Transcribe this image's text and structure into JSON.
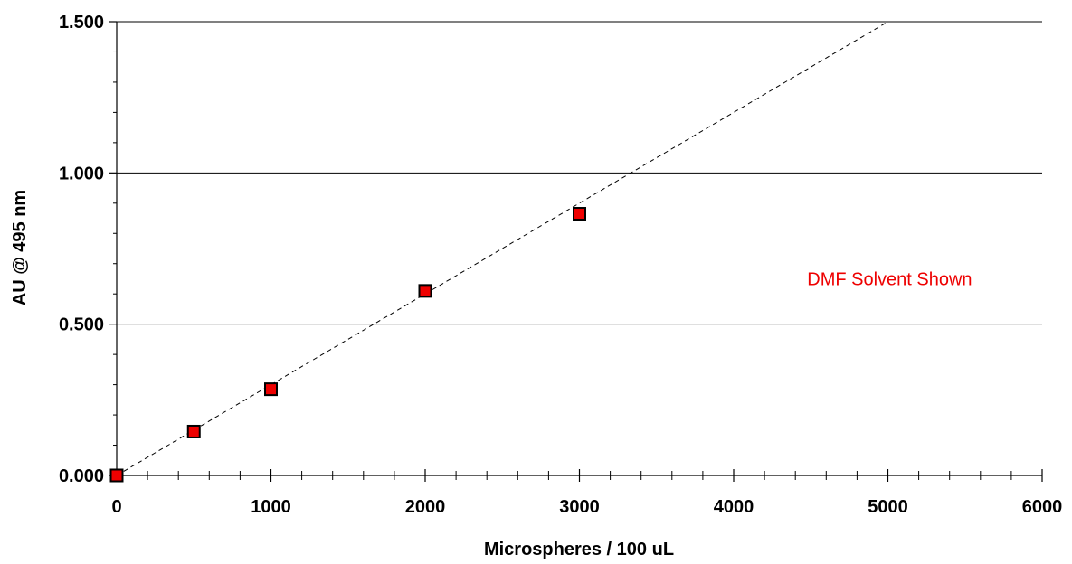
{
  "chart_data": {
    "type": "scatter",
    "xlabel": "Microspheres / 100 uL",
    "ylabel": "AU @ 495 nm",
    "xlim": [
      0,
      6000
    ],
    "ylim": [
      0,
      1.5
    ],
    "x_ticks": [
      0,
      1000,
      2000,
      3000,
      4000,
      5000,
      6000
    ],
    "x_tick_labels": [
      "0",
      "1000",
      "2000",
      "3000",
      "4000",
      "5000",
      "6000"
    ],
    "x_minor_step": 200,
    "y_ticks": [
      0,
      0.5,
      1.0,
      1.5
    ],
    "y_tick_labels": [
      "0.000",
      "0.500",
      "1.000",
      "1.500"
    ],
    "y_minor_step": 0.1,
    "grid": "horizontal major gridlines",
    "series": [
      {
        "x": [
          0,
          500,
          1000,
          2000,
          3000
        ],
        "y": [
          0.0,
          0.145,
          0.285,
          0.61,
          0.865
        ],
        "marker": "square",
        "color": "#ee0000"
      }
    ],
    "trendline": {
      "style": "dashed",
      "slope": 0.0003,
      "intercept": 0.0,
      "x_range": [
        0,
        5000
      ]
    },
    "annotations": [
      {
        "text": "DMF Solvent Shown",
        "x": 4500,
        "y": 0.65,
        "color": "#ee0000"
      }
    ]
  }
}
